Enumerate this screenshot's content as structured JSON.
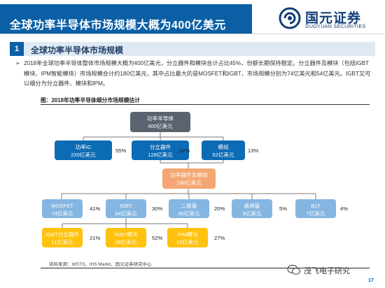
{
  "header": {
    "title": "全球功率半导体市场规模大概为400亿美元",
    "logo_cn": "国元证券",
    "logo_en": "GUOYUAN SECURITIES"
  },
  "section": {
    "number": "1",
    "title": "全球功率半导体市场规模"
  },
  "bullet": {
    "text": "2018年全球功率半导体整体市场规模大概为400亿美元，分立器件和模块合计占比45%，份额长期保持稳定。分立器件及模块（包括IGBT模块、IPM智能模块）市场规模合计约180亿美元，其中占比最大的是MOSFET和IGBT，市场规模分别为74亿美元和54亿美元。IGBT又可以细分为分立器件、模块和IPM。"
  },
  "figure": {
    "caption": "图：2018年功率半导体细分市场规模估计",
    "root": {
      "name": "功率半导体",
      "value": "400亿美元"
    },
    "level1": [
      {
        "name": "功率IC",
        "value": "220亿美元",
        "pct": "55%"
      },
      {
        "name": "分立器件",
        "value": "128亿美元",
        "pct": "32%"
      },
      {
        "name": "模组",
        "value": "52亿美元",
        "pct": "13%"
      }
    ],
    "combined": {
      "name": "功率器件及模组",
      "value": "180亿美元"
    },
    "level3": [
      {
        "name": "MOSFET",
        "value": "74亿美元",
        "pct": "41%"
      },
      {
        "name": "IGBT",
        "value": "54亿美元",
        "pct": "30%"
      },
      {
        "name": "二极管",
        "value": "36亿美元",
        "pct": "20%"
      },
      {
        "name": "晶闸管",
        "value": "9亿美元",
        "pct": "5%"
      },
      {
        "name": "BJT",
        "value": "7亿美元",
        "pct": "4%"
      }
    ],
    "level4": [
      {
        "name": "IGBT分立器件",
        "value": "11亿美元",
        "pct": "21%"
      },
      {
        "name": "IGBT模块",
        "value": "28亿美元",
        "pct": "52%"
      },
      {
        "name": "IPM模块",
        "value": "15亿美元",
        "pct": "27%"
      }
    ]
  },
  "source": "资料来源：WSTS，IHS Markit，国元证券研究中心",
  "footer": {
    "wechat_label": "茂飞电子研究",
    "page_number": "17"
  },
  "colors": {
    "brand_blue": "#0b5fa5",
    "node_gray": "#5b636f",
    "node_blue": "#0c6bb5",
    "node_orange": "#f4a774",
    "node_light_blue": "#85b6e2",
    "node_yellow": "#ffc20e"
  }
}
